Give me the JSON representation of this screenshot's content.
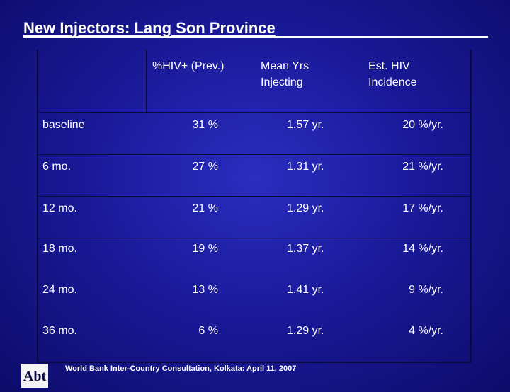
{
  "header": {
    "title": "New Injectors: Lang Son Province"
  },
  "table": {
    "columns": [
      "",
      "%HIV+ (Prev.)",
      "Mean Yrs Injecting",
      "Est. HIV Incidence"
    ],
    "rows": [
      [
        "baseline",
        "31 %",
        "1.57 yr.",
        "20 %/yr."
      ],
      [
        "6 mo.",
        "27 %",
        "1.31 yr.",
        "21 %/yr."
      ],
      [
        "12 mo.",
        "21 %",
        "1.29 yr.",
        "17 %/yr."
      ],
      [
        "18 mo.",
        "19 %",
        "1.37 yr.",
        "14 %/yr."
      ],
      [
        "24 mo.",
        "13 %",
        "1.41 yr.",
        "9 %/yr."
      ],
      [
        "36 mo.",
        "6 %",
        "1.29 yr.",
        "4 %/yr."
      ]
    ]
  },
  "footer": {
    "text": "World Bank Inter-Country Consultation, Kolkata: April 11, 2007",
    "logo": "Abt"
  }
}
